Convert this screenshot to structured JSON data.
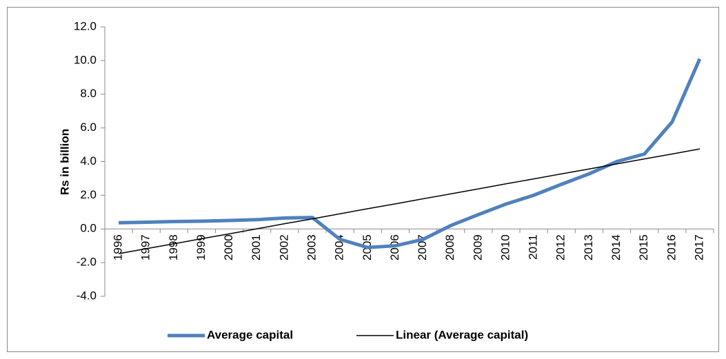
{
  "chart_data": {
    "type": "line",
    "y_label": "Rs in billion",
    "categories": [
      "1996",
      "1997",
      "1998",
      "1999",
      "2000",
      "2001",
      "2002",
      "2003",
      "2004",
      "2005",
      "2006",
      "2007",
      "2008",
      "2009",
      "2010",
      "2011",
      "2012",
      "2013",
      "2014",
      "2015",
      "2016",
      "2017"
    ],
    "series": [
      {
        "name": "Average capital",
        "color": "#4f81bd",
        "width": 5,
        "values": [
          0.37,
          0.4,
          0.44,
          0.46,
          0.5,
          0.55,
          0.65,
          0.68,
          -0.62,
          -1.1,
          -1.0,
          -0.62,
          0.2,
          0.85,
          1.48,
          2.0,
          2.65,
          3.27,
          4.0,
          4.45,
          6.35,
          10.1
        ]
      },
      {
        "name": "Linear (Average capital)",
        "color": "#000000",
        "width": 1.5,
        "values": [
          -1.47,
          -1.17,
          -0.88,
          -0.58,
          -0.29,
          0.01,
          0.31,
          0.6,
          0.9,
          1.2,
          1.49,
          1.79,
          2.08,
          2.38,
          2.68,
          2.97,
          3.27,
          3.56,
          3.86,
          4.16,
          4.45,
          4.75
        ]
      }
    ],
    "ylim": [
      -4,
      12
    ],
    "yticks": [
      {
        "value": -4,
        "label": "-4.0"
      },
      {
        "value": -2,
        "label": "-2.0"
      },
      {
        "value": 0,
        "label": "0.0"
      },
      {
        "value": 2,
        "label": "2.0"
      },
      {
        "value": 4,
        "label": "4.0"
      },
      {
        "value": 6,
        "label": "6.0"
      },
      {
        "value": 8,
        "label": "8.0"
      },
      {
        "value": 10,
        "label": "10.0"
      },
      {
        "value": 12,
        "label": "12.0"
      }
    ],
    "legend": "bottom"
  }
}
